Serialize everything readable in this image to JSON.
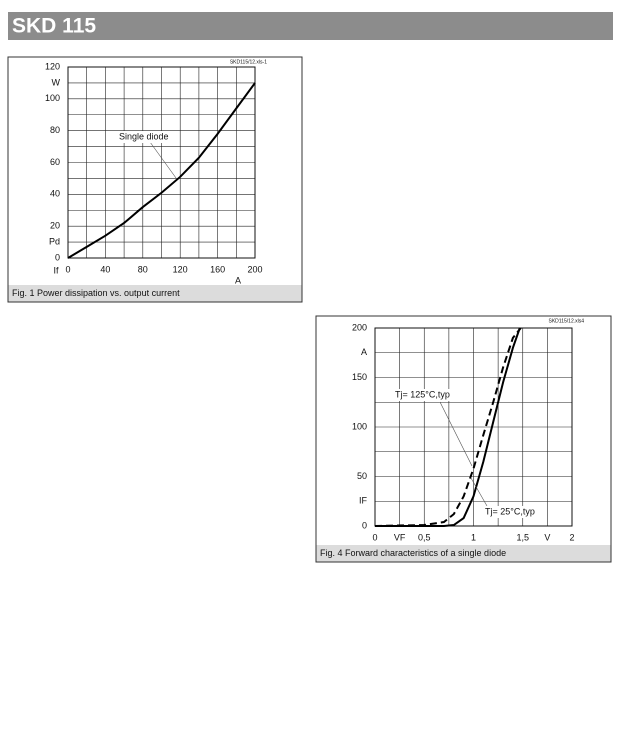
{
  "header": {
    "title": "SKD 115"
  },
  "chart_data": [
    {
      "type": "line",
      "code": "SKD115/12.xls-1",
      "caption": "Fig. 1 Power dissipation vs. output current",
      "x_label": "If",
      "x_unit": "A",
      "xlim": [
        0,
        200
      ],
      "xticks": [
        0,
        40,
        80,
        120,
        160,
        200
      ],
      "minor_xticks": [
        20,
        60,
        100,
        140,
        180
      ],
      "ylim": [
        0,
        120
      ],
      "yticks": [
        0,
        {
          "value": 10,
          "label": "Pd"
        },
        20,
        40,
        60,
        80,
        100,
        {
          "value": 110,
          "label": "W"
        },
        120
      ],
      "minor_yticks": [
        30,
        50,
        70,
        90
      ],
      "grid": true,
      "series": [
        {
          "name": "Single diode",
          "color": "#000000",
          "dash": false,
          "x": [
            0,
            20,
            40,
            60,
            80,
            100,
            120,
            140,
            160,
            180,
            200
          ],
          "values": [
            0,
            7,
            14,
            22,
            32,
            41,
            51,
            63,
            78,
            94,
            110
          ]
        }
      ]
    },
    {
      "type": "line",
      "code": "SKD115/12.xls4",
      "caption": "Fig. 4 Forward characteristics of a single diode",
      "xlim": [
        0,
        2
      ],
      "xticks": [
        0,
        {
          "value": 0.25,
          "label": "VF"
        },
        {
          "value": 0.5,
          "label": "0,5"
        },
        1,
        {
          "value": 1.5,
          "label": "1,5"
        },
        {
          "value": 1.75,
          "label": "V"
        },
        2
      ],
      "minor_xticks": [
        0.75,
        1.25
      ],
      "ylim": [
        0,
        200
      ],
      "yticks": [
        0,
        {
          "value": 25,
          "label": "IF"
        },
        50,
        100,
        150,
        {
          "value": 175,
          "label": "A"
        },
        200
      ],
      "minor_yticks": [
        75,
        125
      ],
      "grid": true,
      "series": [
        {
          "name": "Tj= 125°C,typ",
          "color": "#000000",
          "dash": true,
          "x": [
            0,
            0.5,
            0.7,
            0.8,
            0.9,
            1.0,
            1.1,
            1.2,
            1.3,
            1.4,
            1.48
          ],
          "values": [
            0,
            1,
            4,
            12,
            30,
            58,
            92,
            125,
            160,
            190,
            200
          ]
        },
        {
          "name": "Tj= 25°C,typ",
          "color": "#000000",
          "dash": false,
          "x": [
            0,
            0.7,
            0.8,
            0.9,
            1.0,
            1.1,
            1.2,
            1.3,
            1.4,
            1.47
          ],
          "values": [
            0,
            0,
            1,
            8,
            30,
            65,
            105,
            145,
            180,
            200
          ]
        }
      ]
    }
  ]
}
